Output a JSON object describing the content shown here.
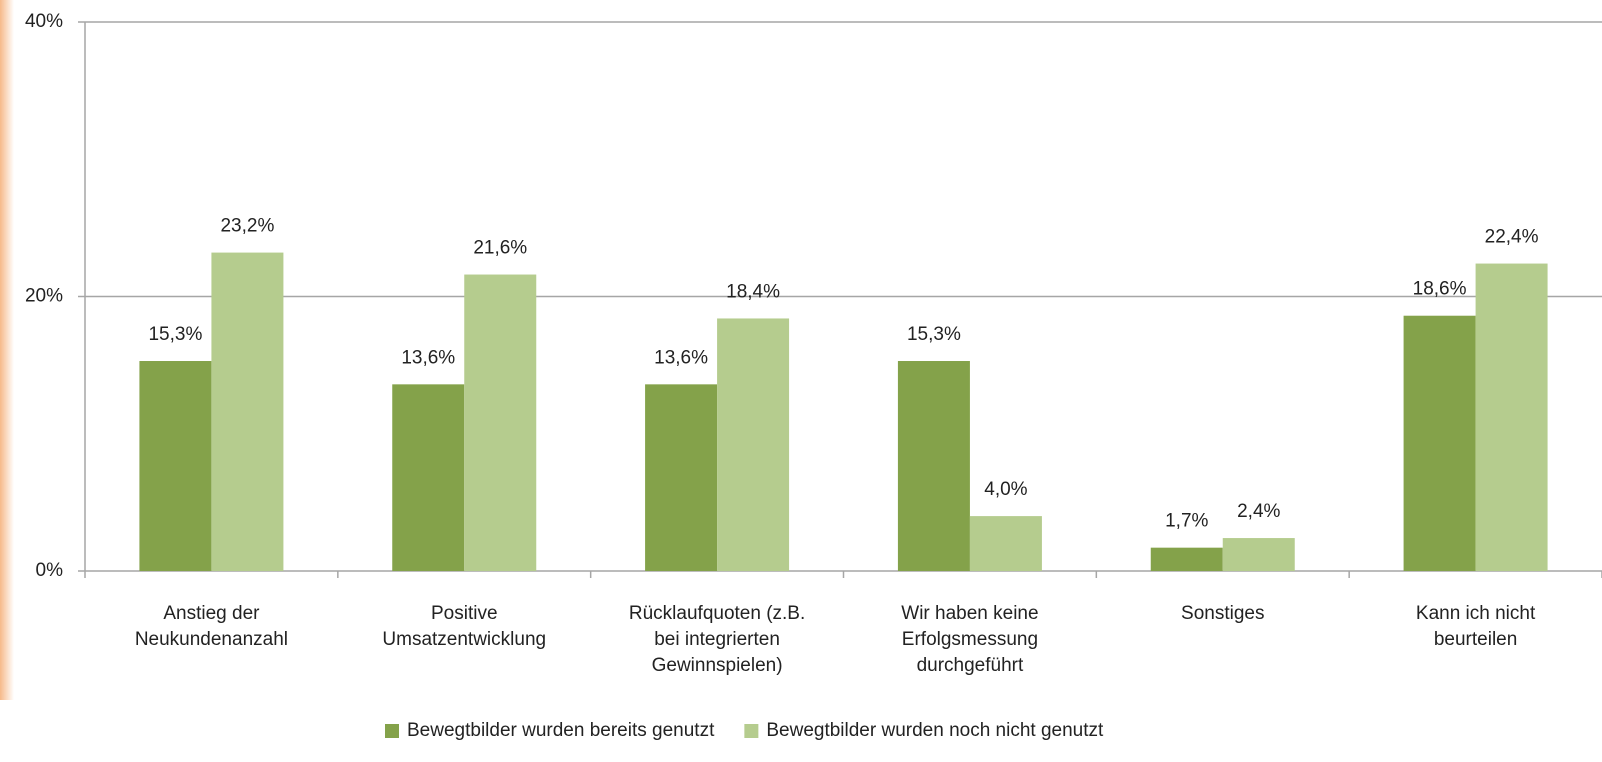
{
  "chart_data": {
    "type": "bar",
    "categories": [
      "Anstieg der\nNeukundenanzahl",
      "Positive\nUmsatzentwicklung",
      "Rücklaufquoten (z.B.\nbei integrierten\nGewinnspielen)",
      "Wir haben keine\nErfolgsmessung\ndurchgeführt",
      "Sonstiges",
      "Kann ich nicht\nbeurteilen"
    ],
    "series": [
      {
        "name": "Bewegtbilder wurden bereits genutzt",
        "color": "#84a24a",
        "values": [
          15.3,
          13.6,
          13.6,
          15.3,
          1.7,
          18.6
        ],
        "value_labels": [
          "15,3%",
          "13,6%",
          "13,6%",
          "15,3%",
          "1,7%",
          "18,6%"
        ]
      },
      {
        "name": "Bewegtbilder wurden noch nicht genutzt",
        "color": "#b5cc8e",
        "values": [
          23.2,
          21.6,
          18.4,
          4.0,
          2.4,
          22.4
        ],
        "value_labels": [
          "23,2%",
          "21,6%",
          "18,4%",
          "4,0%",
          "2,4%",
          "22,4%"
        ]
      }
    ],
    "ylim": [
      0,
      40
    ],
    "yticks": [
      {
        "value": 0,
        "label": "0%"
      },
      {
        "value": 20,
        "label": "20%"
      },
      {
        "value": 40,
        "label": "40%"
      }
    ],
    "grid": true,
    "legend": "bottom"
  }
}
